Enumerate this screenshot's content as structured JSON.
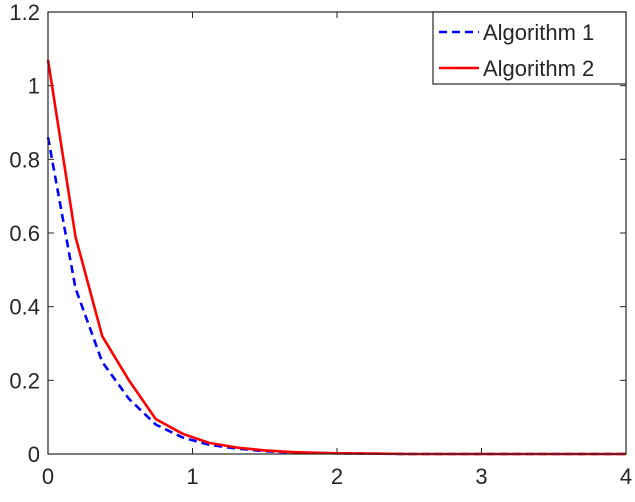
{
  "chart_data": {
    "type": "line",
    "title": "",
    "xlabel": "",
    "ylabel": "",
    "xlim": [
      0,
      4
    ],
    "ylim": [
      0,
      1.2
    ],
    "xticks": [
      0,
      1,
      2,
      3,
      4
    ],
    "xtick_labels": [
      "0",
      "1",
      "2",
      "3",
      "4"
    ],
    "yticks": [
      0,
      0.2,
      0.4,
      0.6,
      0.8,
      1.0,
      1.2
    ],
    "ytick_labels": [
      "0",
      "0.2",
      "0.4",
      "0.6",
      "0.8",
      "1",
      "1.2"
    ],
    "grid": false,
    "legend_position": "top-right",
    "series": [
      {
        "name": "Algorithm 1",
        "color": "#0000ff",
        "dash": "dashed",
        "x": [
          0.0,
          0.19,
          0.375,
          0.56,
          0.745,
          0.93,
          1.115,
          1.3,
          1.49,
          1.7,
          2.0,
          2.5,
          3.0,
          4.0
        ],
        "y": [
          0.86,
          0.45,
          0.25,
          0.15,
          0.08,
          0.045,
          0.025,
          0.015,
          0.008,
          0.004,
          0.002,
          0.0,
          0.0,
          0.0
        ]
      },
      {
        "name": "Algorithm 2",
        "color": "#ff0000",
        "dash": "solid",
        "x": [
          0.0,
          0.19,
          0.375,
          0.56,
          0.745,
          0.93,
          1.115,
          1.3,
          1.49,
          1.7,
          2.0,
          2.5,
          3.0,
          4.0
        ],
        "y": [
          1.07,
          0.59,
          0.32,
          0.2,
          0.095,
          0.055,
          0.03,
          0.018,
          0.01,
          0.005,
          0.002,
          0.0,
          0.0,
          0.0
        ]
      }
    ]
  }
}
